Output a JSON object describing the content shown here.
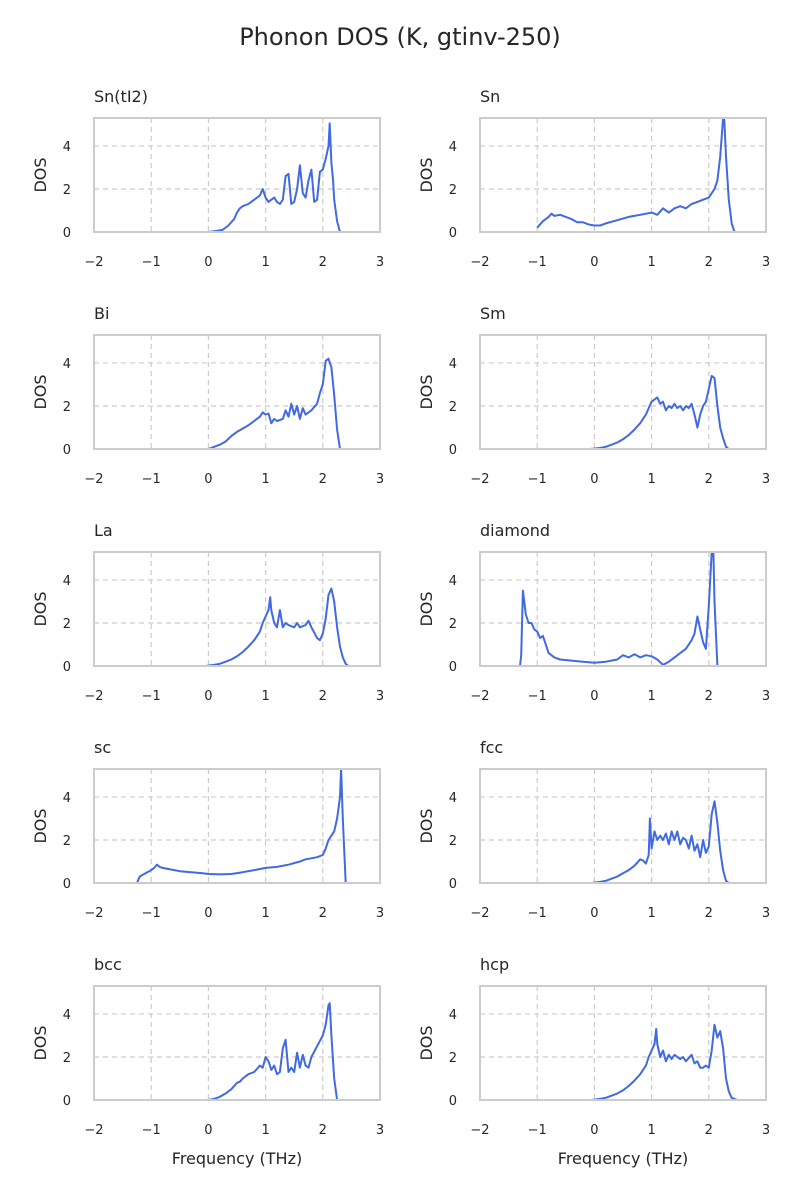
{
  "figure": {
    "title": "Phonon DOS (K, gtinv-250)"
  },
  "colors": {
    "line": "#4169e1",
    "grid": "#cccccc",
    "frame": "#cccccc",
    "text": "#262626"
  },
  "chart_data": [
    {
      "type": "line",
      "title": "Sn(tI2)",
      "xlabel": "",
      "ylabel": "DOS",
      "xlim": [
        -2,
        3
      ],
      "ylim": [
        0,
        5.3
      ],
      "xticks": [
        -2,
        -1,
        0,
        1,
        2,
        3
      ],
      "yticks": [
        0,
        2,
        4
      ],
      "grid": true,
      "series": [
        {
          "x": [
            0.0,
            0.15,
            0.25,
            0.35,
            0.45,
            0.5,
            0.55,
            0.6,
            0.7,
            0.8,
            0.9,
            0.95,
            1.0,
            1.05,
            1.1,
            1.15,
            1.2,
            1.25,
            1.3,
            1.35,
            1.4,
            1.45,
            1.5,
            1.55,
            1.6,
            1.65,
            1.7,
            1.75,
            1.8,
            1.85,
            1.9,
            1.95,
            2.0,
            2.05,
            2.1,
            2.12,
            2.15,
            2.18,
            2.2,
            2.25,
            2.3
          ],
          "y": [
            0.0,
            0.05,
            0.1,
            0.3,
            0.6,
            0.9,
            1.1,
            1.2,
            1.3,
            1.5,
            1.7,
            2.0,
            1.6,
            1.4,
            1.5,
            1.6,
            1.4,
            1.3,
            1.5,
            2.6,
            2.7,
            1.3,
            1.4,
            2.0,
            3.1,
            1.8,
            1.6,
            2.4,
            2.9,
            1.4,
            1.5,
            2.8,
            2.9,
            3.4,
            4.0,
            5.05,
            3.2,
            2.4,
            1.5,
            0.5,
            0.0
          ]
        }
      ]
    },
    {
      "type": "line",
      "title": "Sn",
      "xlabel": "",
      "ylabel": "DOS",
      "xlim": [
        -2,
        3
      ],
      "ylim": [
        0,
        5.3
      ],
      "xticks": [
        -2,
        -1,
        0,
        1,
        2,
        3
      ],
      "yticks": [
        0,
        2,
        4
      ],
      "grid": true,
      "series": [
        {
          "x": [
            -1.0,
            -0.9,
            -0.8,
            -0.75,
            -0.7,
            -0.6,
            -0.5,
            -0.4,
            -0.3,
            -0.2,
            -0.1,
            0.0,
            0.1,
            0.2,
            0.4,
            0.6,
            0.8,
            1.0,
            1.1,
            1.2,
            1.3,
            1.4,
            1.5,
            1.6,
            1.7,
            1.8,
            1.9,
            2.0,
            2.1,
            2.15,
            2.2,
            2.25,
            2.27,
            2.3,
            2.35,
            2.4,
            2.45
          ],
          "y": [
            0.2,
            0.5,
            0.7,
            0.85,
            0.75,
            0.8,
            0.7,
            0.6,
            0.45,
            0.45,
            0.35,
            0.3,
            0.3,
            0.4,
            0.55,
            0.7,
            0.8,
            0.9,
            0.8,
            1.1,
            0.9,
            1.1,
            1.2,
            1.1,
            1.3,
            1.4,
            1.5,
            1.6,
            2.0,
            2.4,
            3.5,
            5.3,
            5.3,
            3.5,
            1.5,
            0.4,
            0.0
          ]
        }
      ]
    },
    {
      "type": "line",
      "title": "Bi",
      "xlabel": "",
      "ylabel": "DOS",
      "xlim": [
        -2,
        3
      ],
      "ylim": [
        0,
        5.3
      ],
      "xticks": [
        -2,
        -1,
        0,
        1,
        2,
        3
      ],
      "yticks": [
        0,
        2,
        4
      ],
      "grid": true,
      "series": [
        {
          "x": [
            0.0,
            0.1,
            0.2,
            0.3,
            0.4,
            0.5,
            0.6,
            0.7,
            0.8,
            0.9,
            0.95,
            1.0,
            1.05,
            1.1,
            1.15,
            1.2,
            1.3,
            1.35,
            1.4,
            1.45,
            1.5,
            1.55,
            1.6,
            1.65,
            1.7,
            1.8,
            1.9,
            1.95,
            2.0,
            2.05,
            2.1,
            2.15,
            2.2,
            2.25,
            2.3
          ],
          "y": [
            0.0,
            0.1,
            0.2,
            0.35,
            0.6,
            0.8,
            0.95,
            1.1,
            1.3,
            1.5,
            1.7,
            1.6,
            1.65,
            1.2,
            1.4,
            1.3,
            1.4,
            1.8,
            1.5,
            2.1,
            1.6,
            2.0,
            1.4,
            1.9,
            1.6,
            1.8,
            2.1,
            2.6,
            3.0,
            4.1,
            4.2,
            3.8,
            2.5,
            0.9,
            0.0
          ]
        }
      ]
    },
    {
      "type": "line",
      "title": "Sm",
      "xlabel": "",
      "ylabel": "DOS",
      "xlim": [
        -2,
        3
      ],
      "ylim": [
        0,
        5.3
      ],
      "xticks": [
        -2,
        -1,
        0,
        1,
        2,
        3
      ],
      "yticks": [
        0,
        2,
        4
      ],
      "grid": true,
      "series": [
        {
          "x": [
            -0.1,
            0.0,
            0.1,
            0.2,
            0.3,
            0.4,
            0.5,
            0.6,
            0.7,
            0.8,
            0.9,
            0.95,
            1.0,
            1.05,
            1.1,
            1.15,
            1.2,
            1.25,
            1.3,
            1.35,
            1.4,
            1.45,
            1.5,
            1.55,
            1.6,
            1.65,
            1.7,
            1.75,
            1.8,
            1.85,
            1.9,
            1.95,
            2.0,
            2.05,
            2.1,
            2.15,
            2.2,
            2.25,
            2.3,
            2.35
          ],
          "y": [
            0.0,
            0.02,
            0.05,
            0.1,
            0.2,
            0.3,
            0.45,
            0.65,
            0.9,
            1.2,
            1.6,
            1.9,
            2.2,
            2.3,
            2.4,
            2.1,
            2.2,
            1.8,
            2.0,
            1.9,
            2.1,
            1.9,
            2.0,
            1.8,
            2.0,
            1.9,
            2.1,
            1.6,
            1.0,
            1.6,
            2.0,
            2.2,
            2.8,
            3.4,
            3.3,
            2.0,
            1.0,
            0.5,
            0.1,
            0.0
          ]
        }
      ]
    },
    {
      "type": "line",
      "title": "La",
      "xlabel": "",
      "ylabel": "DOS",
      "xlim": [
        -2,
        3
      ],
      "ylim": [
        0,
        5.3
      ],
      "xticks": [
        -2,
        -1,
        0,
        1,
        2,
        3
      ],
      "yticks": [
        0,
        2,
        4
      ],
      "grid": true,
      "series": [
        {
          "x": [
            -0.05,
            0.0,
            0.1,
            0.2,
            0.3,
            0.4,
            0.5,
            0.6,
            0.7,
            0.8,
            0.9,
            0.95,
            1.0,
            1.05,
            1.08,
            1.1,
            1.15,
            1.2,
            1.25,
            1.3,
            1.35,
            1.4,
            1.5,
            1.55,
            1.6,
            1.7,
            1.75,
            1.8,
            1.9,
            1.95,
            2.0,
            2.05,
            2.1,
            2.15,
            2.2,
            2.25,
            2.3,
            2.35,
            2.4,
            2.45
          ],
          "y": [
            0.0,
            0.02,
            0.05,
            0.1,
            0.2,
            0.3,
            0.45,
            0.65,
            0.9,
            1.2,
            1.6,
            2.0,
            2.3,
            2.6,
            3.2,
            2.6,
            2.0,
            1.8,
            2.6,
            1.8,
            2.0,
            1.9,
            1.8,
            2.0,
            1.8,
            1.9,
            2.1,
            1.8,
            1.3,
            1.2,
            1.5,
            2.2,
            3.3,
            3.6,
            3.0,
            1.8,
            0.9,
            0.4,
            0.1,
            0.0
          ]
        }
      ]
    },
    {
      "type": "line",
      "title": "diamond",
      "xlabel": "",
      "ylabel": "DOS",
      "xlim": [
        -2,
        3
      ],
      "ylim": [
        0,
        5.3
      ],
      "xticks": [
        -2,
        -1,
        0,
        1,
        2,
        3
      ],
      "yticks": [
        0,
        2,
        4
      ],
      "grid": true,
      "series": [
        {
          "x": [
            -1.55,
            -1.3,
            -1.28,
            -1.25,
            -1.2,
            -1.15,
            -1.1,
            -1.05,
            -1.0,
            -0.95,
            -0.9,
            -0.85,
            -0.8,
            -0.7,
            -0.6,
            -0.4,
            -0.2,
            0.0,
            0.2,
            0.4,
            0.5,
            0.6,
            0.7,
            0.8,
            0.9,
            1.0,
            1.1,
            1.2,
            1.3,
            1.4,
            1.5,
            1.6,
            1.7,
            1.75,
            1.8,
            1.85,
            1.9,
            1.95,
            2.0,
            2.05,
            2.08,
            2.1,
            2.15
          ],
          "y": [
            0.0,
            0.0,
            0.5,
            3.5,
            2.4,
            2.0,
            2.0,
            1.7,
            1.6,
            1.3,
            1.4,
            1.0,
            0.6,
            0.4,
            0.3,
            0.25,
            0.2,
            0.15,
            0.2,
            0.3,
            0.5,
            0.4,
            0.55,
            0.4,
            0.5,
            0.45,
            0.3,
            0.05,
            0.2,
            0.4,
            0.6,
            0.8,
            1.2,
            1.5,
            2.3,
            1.7,
            1.1,
            0.8,
            2.8,
            5.3,
            5.3,
            3.0,
            0.0
          ]
        }
      ]
    },
    {
      "type": "line",
      "title": "sc",
      "xlabel": "",
      "ylabel": "DOS",
      "xlim": [
        -2,
        3
      ],
      "ylim": [
        0,
        5.3
      ],
      "xticks": [
        -2,
        -1,
        0,
        1,
        2,
        3
      ],
      "yticks": [
        0,
        2,
        4
      ],
      "grid": true,
      "series": [
        {
          "x": [
            -1.25,
            -1.2,
            -1.1,
            -1.0,
            -0.95,
            -0.9,
            -0.85,
            -0.8,
            -0.7,
            -0.5,
            -0.3,
            -0.1,
            0.0,
            0.2,
            0.4,
            0.6,
            0.8,
            1.0,
            1.2,
            1.4,
            1.6,
            1.7,
            1.8,
            1.9,
            2.0,
            2.05,
            2.1,
            2.15,
            2.2,
            2.25,
            2.3,
            2.32,
            2.35,
            2.4
          ],
          "y": [
            0.0,
            0.3,
            0.45,
            0.6,
            0.7,
            0.85,
            0.75,
            0.7,
            0.65,
            0.55,
            0.5,
            0.45,
            0.42,
            0.4,
            0.42,
            0.5,
            0.6,
            0.7,
            0.75,
            0.85,
            1.0,
            1.1,
            1.15,
            1.2,
            1.3,
            1.6,
            2.0,
            2.2,
            2.4,
            3.0,
            4.0,
            5.3,
            3.0,
            0.0
          ]
        }
      ]
    },
    {
      "type": "line",
      "title": "fcc",
      "xlabel": "",
      "ylabel": "DOS",
      "xlim": [
        -2,
        3
      ],
      "ylim": [
        0,
        5.3
      ],
      "xticks": [
        -2,
        -1,
        0,
        1,
        2,
        3
      ],
      "yticks": [
        0,
        2,
        4
      ],
      "grid": true,
      "series": [
        {
          "x": [
            -0.05,
            0.0,
            0.1,
            0.2,
            0.3,
            0.4,
            0.5,
            0.6,
            0.7,
            0.8,
            0.85,
            0.9,
            0.95,
            0.97,
            1.0,
            1.05,
            1.1,
            1.15,
            1.2,
            1.25,
            1.3,
            1.35,
            1.4,
            1.45,
            1.5,
            1.55,
            1.6,
            1.65,
            1.7,
            1.75,
            1.8,
            1.85,
            1.9,
            1.95,
            2.0,
            2.05,
            2.1,
            2.15,
            2.2,
            2.25,
            2.3,
            2.35
          ],
          "y": [
            0.0,
            0.02,
            0.05,
            0.1,
            0.2,
            0.3,
            0.45,
            0.6,
            0.8,
            1.1,
            1.05,
            0.9,
            1.3,
            3.0,
            1.6,
            2.4,
            2.0,
            2.2,
            2.0,
            2.3,
            1.8,
            2.4,
            2.0,
            2.4,
            1.8,
            2.1,
            2.0,
            1.6,
            2.2,
            1.5,
            1.8,
            1.2,
            2.0,
            1.4,
            1.7,
            3.2,
            3.8,
            2.8,
            1.5,
            0.6,
            0.1,
            0.0
          ]
        }
      ]
    },
    {
      "type": "line",
      "title": "bcc",
      "xlabel": "Frequency (THz)",
      "ylabel": "DOS",
      "xlim": [
        -2,
        3
      ],
      "ylim": [
        0,
        5.3
      ],
      "xticks": [
        -2,
        -1,
        0,
        1,
        2,
        3
      ],
      "yticks": [
        0,
        2,
        4
      ],
      "grid": true,
      "series": [
        {
          "x": [
            0.0,
            0.1,
            0.2,
            0.3,
            0.4,
            0.5,
            0.55,
            0.6,
            0.7,
            0.8,
            0.9,
            0.95,
            1.0,
            1.05,
            1.1,
            1.15,
            1.2,
            1.25,
            1.3,
            1.35,
            1.4,
            1.45,
            1.5,
            1.55,
            1.6,
            1.65,
            1.7,
            1.75,
            1.8,
            1.9,
            2.0,
            2.05,
            2.1,
            2.12,
            2.15,
            2.2,
            2.25
          ],
          "y": [
            0.0,
            0.05,
            0.15,
            0.3,
            0.5,
            0.8,
            0.85,
            1.0,
            1.2,
            1.3,
            1.6,
            1.5,
            2.0,
            1.8,
            1.4,
            1.6,
            1.2,
            1.3,
            2.4,
            2.8,
            1.3,
            1.5,
            1.3,
            2.2,
            1.5,
            2.1,
            1.6,
            1.5,
            2.0,
            2.5,
            3.0,
            3.5,
            4.4,
            4.5,
            3.0,
            1.0,
            0.0
          ]
        }
      ]
    },
    {
      "type": "line",
      "title": "hcp",
      "xlabel": "Frequency (THz)",
      "ylabel": "DOS",
      "xlim": [
        -2,
        3
      ],
      "ylim": [
        0,
        5.3
      ],
      "xticks": [
        -2,
        -1,
        0,
        1,
        2,
        3
      ],
      "yticks": [
        0,
        2,
        4
      ],
      "grid": true,
      "series": [
        {
          "x": [
            -0.05,
            0.0,
            0.1,
            0.2,
            0.3,
            0.4,
            0.5,
            0.6,
            0.7,
            0.8,
            0.9,
            0.95,
            1.0,
            1.05,
            1.08,
            1.1,
            1.15,
            1.2,
            1.25,
            1.3,
            1.35,
            1.4,
            1.5,
            1.55,
            1.6,
            1.7,
            1.75,
            1.8,
            1.85,
            1.9,
            1.95,
            2.0,
            2.05,
            2.1,
            2.15,
            2.2,
            2.25,
            2.3,
            2.35,
            2.4,
            2.5
          ],
          "y": [
            0.0,
            0.02,
            0.05,
            0.1,
            0.2,
            0.3,
            0.45,
            0.65,
            0.9,
            1.2,
            1.6,
            2.0,
            2.3,
            2.6,
            3.3,
            2.6,
            2.0,
            2.3,
            1.8,
            2.1,
            1.9,
            2.1,
            1.9,
            2.0,
            1.8,
            2.1,
            1.7,
            1.8,
            1.5,
            1.5,
            1.6,
            1.5,
            2.3,
            3.5,
            2.9,
            3.2,
            2.4,
            1.0,
            0.4,
            0.1,
            0.0
          ]
        }
      ]
    }
  ]
}
